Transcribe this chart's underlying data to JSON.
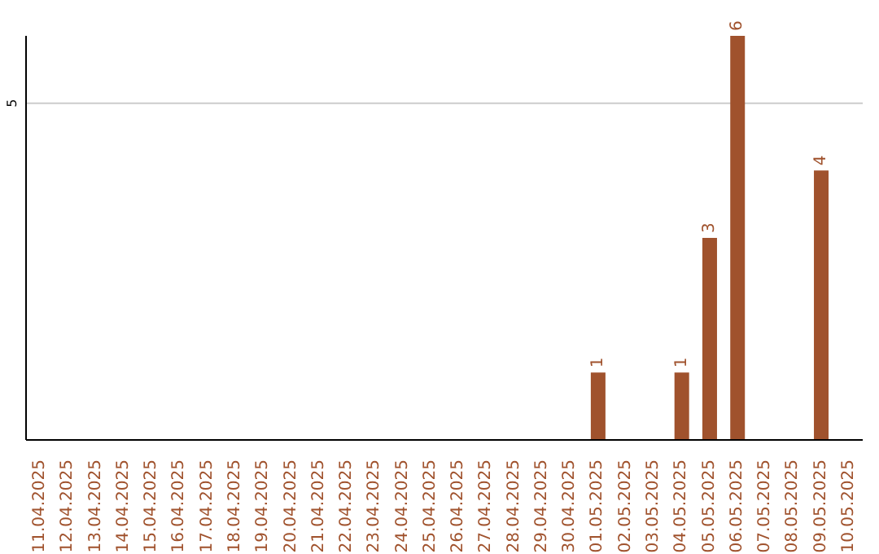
{
  "chart_data": {
    "type": "bar",
    "categories": [
      "11.04.2025",
      "12.04.2025",
      "13.04.2025",
      "14.04.2025",
      "15.04.2025",
      "16.04.2025",
      "17.04.2025",
      "18.04.2025",
      "19.04.2025",
      "20.04.2025",
      "21.04.2025",
      "22.04.2025",
      "23.04.2025",
      "24.04.2025",
      "25.04.2025",
      "26.04.2025",
      "27.04.2025",
      "28.04.2025",
      "29.04.2025",
      "30.04.2025",
      "01.05.2025",
      "02.05.2025",
      "03.05.2025",
      "04.05.2025",
      "05.05.2025",
      "06.05.2025",
      "07.05.2025",
      "08.05.2025",
      "09.05.2025",
      "10.05.2025"
    ],
    "values": [
      null,
      null,
      null,
      null,
      null,
      null,
      null,
      null,
      null,
      null,
      null,
      null,
      null,
      null,
      null,
      null,
      null,
      null,
      null,
      null,
      1,
      null,
      null,
      1,
      3,
      6,
      null,
      null,
      4,
      null
    ],
    "color": "#a0522d",
    "ylim": [
      0,
      6
    ],
    "yticks": [
      5
    ],
    "grid": "y",
    "data_labels": true
  }
}
